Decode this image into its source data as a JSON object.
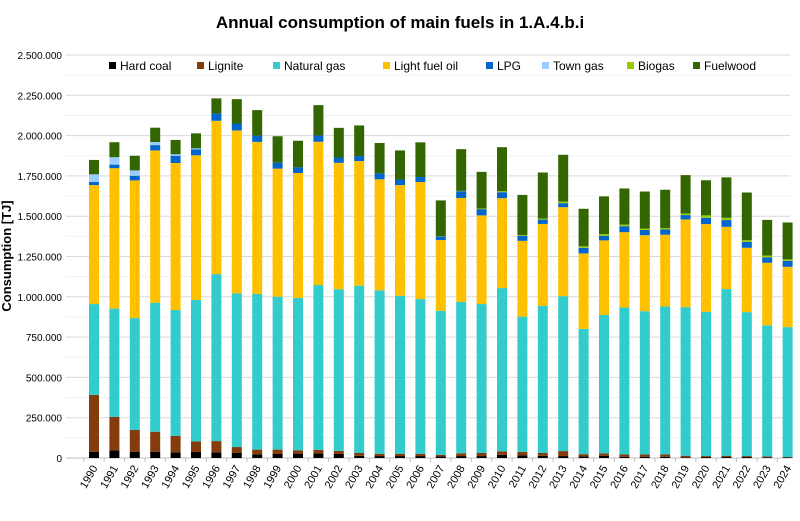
{
  "chart_data": {
    "type": "stacked-bar",
    "title": "Annual consumption of main fuels in 1.A.4.b.i",
    "xlabel": "",
    "ylabel": "Consumption [TJ]",
    "ylim": [
      0,
      2500000
    ],
    "yticks": [
      "0",
      "250.000",
      "500.000",
      "750.000",
      "1.000.000",
      "1.250.000",
      "1.500.000",
      "1.750.000",
      "2.000.000",
      "2.250.000",
      "2.500.000"
    ],
    "grid": true,
    "legend_position": "top",
    "categories": [
      "1990",
      "1991",
      "1992",
      "1993",
      "1994",
      "1995",
      "1996",
      "1997",
      "1998",
      "1999",
      "2000",
      "2001",
      "2002",
      "2003",
      "2004",
      "2005",
      "2006",
      "2007",
      "2008",
      "2009",
      "2010",
      "2011",
      "2012",
      "2013",
      "2014",
      "2015",
      "2016",
      "2017",
      "2018",
      "2019",
      "2020",
      "2021",
      "2022",
      "2023",
      "2024"
    ],
    "series": [
      {
        "name": "Hard coal",
        "color": "#000000",
        "values": [
          39000,
          48000,
          39000,
          39000,
          35000,
          37000,
          35000,
          33000,
          23000,
          25000,
          27000,
          29000,
          25000,
          14000,
          12000,
          12000,
          12000,
          10000,
          12000,
          12000,
          20000,
          17000,
          14000,
          12000,
          10000,
          14000,
          8000,
          8000,
          8000,
          4000,
          6000,
          6000,
          6000,
          4000,
          4000
        ]
      },
      {
        "name": "Lignite",
        "color": "#843c0c",
        "values": [
          352000,
          207000,
          136000,
          124000,
          103000,
          66000,
          70000,
          35000,
          29000,
          27000,
          21000,
          22000,
          19000,
          17000,
          14000,
          14000,
          14000,
          10000,
          17000,
          19000,
          21000,
          21000,
          17000,
          31000,
          14000,
          15000,
          14000,
          14000,
          14000,
          10000,
          6000,
          8000,
          6000,
          6000,
          2000
        ]
      },
      {
        "name": "Natural gas",
        "color": "#33cccc",
        "values": [
          564000,
          672000,
          693000,
          800000,
          780000,
          877000,
          1036000,
          953000,
          966000,
          949000,
          945000,
          1022000,
          1003000,
          1038000,
          1014000,
          980000,
          960000,
          893000,
          939000,
          924000,
          1013000,
          839000,
          912000,
          961000,
          777000,
          858000,
          912000,
          889000,
          918000,
          922000,
          895000,
          1034000,
          893000,
          813000,
          806000
        ]
      },
      {
        "name": "Light fuel oil",
        "color": "#ffc000",
        "values": [
          738000,
          871000,
          854000,
          945000,
          912000,
          898000,
          951000,
          1011000,
          943000,
          794000,
          775000,
          889000,
          784000,
          773000,
          689000,
          687000,
          726000,
          439000,
          645000,
          550000,
          558000,
          470000,
          509000,
          552000,
          468000,
          463000,
          467000,
          471000,
          445000,
          544000,
          544000,
          386000,
          399000,
          388000,
          374000
        ]
      },
      {
        "name": "LPG",
        "color": "#0066cc",
        "values": [
          19000,
          22000,
          29000,
          33000,
          45000,
          37000,
          46000,
          43000,
          39000,
          37000,
          35000,
          39000,
          33000,
          31000,
          37000,
          35000,
          31000,
          23000,
          42000,
          39000,
          37000,
          31000,
          27000,
          25000,
          35000,
          29000,
          37000,
          33000,
          33000,
          27000,
          39000,
          42000,
          37000,
          33000,
          37000
        ]
      },
      {
        "name": "Town gas",
        "color": "#99ccff",
        "values": [
          48000,
          46000,
          33000,
          19000,
          9000,
          6000,
          0,
          0,
          0,
          0,
          0,
          0,
          0,
          0,
          0,
          0,
          0,
          0,
          0,
          0,
          0,
          0,
          0,
          0,
          0,
          0,
          0,
          0,
          0,
          0,
          0,
          0,
          0,
          0,
          0
        ]
      },
      {
        "name": "Biogas",
        "color": "#99cc00",
        "values": [
          0,
          0,
          0,
          0,
          0,
          0,
          0,
          0,
          0,
          0,
          0,
          0,
          0,
          0,
          0,
          0,
          0,
          2000,
          2000,
          4000,
          6000,
          4000,
          6000,
          10000,
          9000,
          10000,
          10000,
          8000,
          8000,
          10000,
          15000,
          14000,
          10000,
          12000,
          9000
        ]
      },
      {
        "name": "Fuelwood",
        "color": "#336600",
        "values": [
          89000,
          93000,
          91000,
          89000,
          89000,
          93000,
          93000,
          151000,
          158000,
          164000,
          165000,
          188000,
          184000,
          190000,
          188000,
          180000,
          215000,
          221000,
          259000,
          227000,
          273000,
          250000,
          286000,
          290000,
          233000,
          234000,
          224000,
          230000,
          238000,
          238000,
          218000,
          251000,
          296000,
          221000,
          229000
        ]
      }
    ]
  }
}
